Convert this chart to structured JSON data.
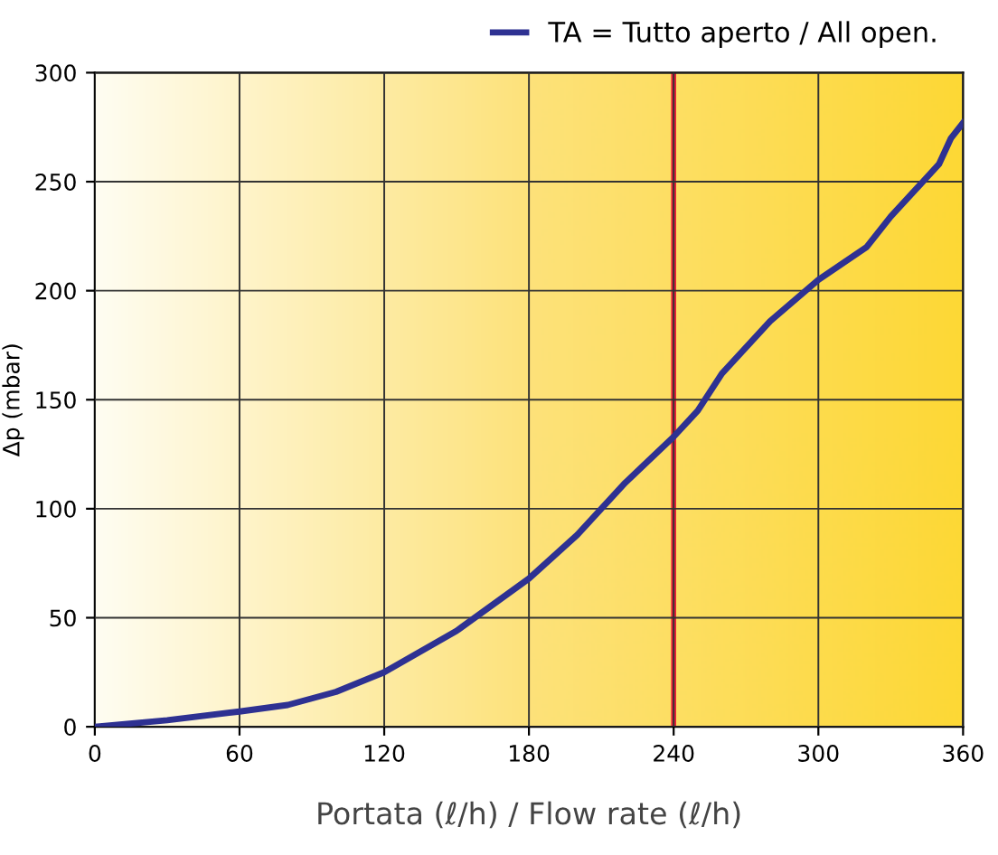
{
  "chart_data": {
    "type": "line",
    "xlabel": "Portata (ℓ/h) / Flow rate (ℓ/h)",
    "ylabel": "Δp (mbar)",
    "series": [
      {
        "name": "TA = Tutto aperto / All open.",
        "color": "#2e3192",
        "x": [
          0,
          30,
          60,
          80,
          100,
          120,
          150,
          180,
          200,
          220,
          240,
          250,
          260,
          280,
          300,
          320,
          330,
          340,
          350,
          355,
          360
        ],
        "values": [
          0,
          3,
          7,
          10,
          16,
          25,
          44,
          68,
          88,
          112,
          133,
          145,
          162,
          186,
          205,
          220,
          234,
          246,
          258,
          270,
          277
        ]
      }
    ],
    "xlim": [
      0,
      360
    ],
    "xticks": [
      0,
      60,
      120,
      180,
      240,
      300,
      360
    ],
    "ylim": [
      0,
      300
    ],
    "yticks": [
      0,
      50,
      100,
      150,
      200,
      250,
      300
    ],
    "ref_lines": [
      {
        "axis": "x",
        "value": 240,
        "color": "#e8203a",
        "line_style": "solid"
      }
    ],
    "grid": true,
    "legend": "top right"
  }
}
